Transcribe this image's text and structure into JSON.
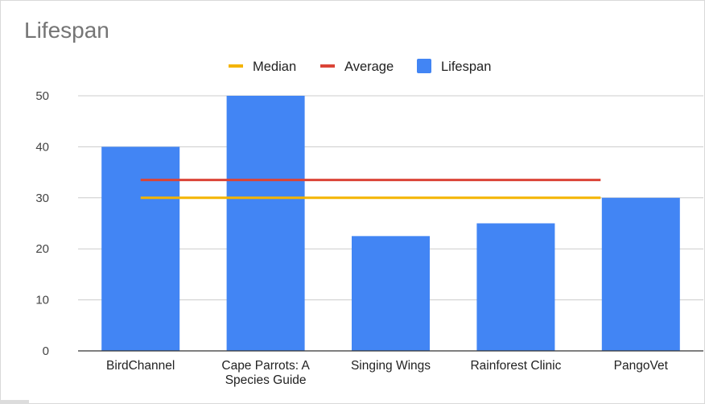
{
  "chart_data": {
    "type": "bar",
    "title": "Lifespan",
    "categories": [
      "BirdChannel",
      "Cape Parrots: A Species Guide",
      "Singing Wings",
      "Rainforest Clinic",
      "PangoVet"
    ],
    "category_lines": [
      [
        "BirdChannel"
      ],
      [
        "Cape Parrots: A",
        "Species Guide"
      ],
      [
        "Singing Wings"
      ],
      [
        "Rainforest Clinic"
      ],
      [
        "PangoVet"
      ]
    ],
    "series": [
      {
        "name": "Lifespan",
        "type": "bar",
        "color": "#4285f4",
        "values": [
          40,
          50,
          22.5,
          25,
          30
        ]
      },
      {
        "name": "Median",
        "type": "line",
        "color": "#f4b400",
        "value": 30
      },
      {
        "name": "Average",
        "type": "line",
        "color": "#db4437",
        "value": 33.5
      }
    ],
    "legend": {
      "position": "top",
      "items": [
        {
          "name": "Median",
          "color": "#f4b400",
          "marker": "line"
        },
        {
          "name": "Average",
          "color": "#db4437",
          "marker": "line"
        },
        {
          "name": "Lifespan",
          "color": "#4285f4",
          "marker": "square"
        }
      ]
    },
    "ylim": [
      0,
      50
    ],
    "yticks": [
      0,
      10,
      20,
      30,
      40,
      50
    ],
    "grid": true,
    "xlabel": "",
    "ylabel": ""
  }
}
